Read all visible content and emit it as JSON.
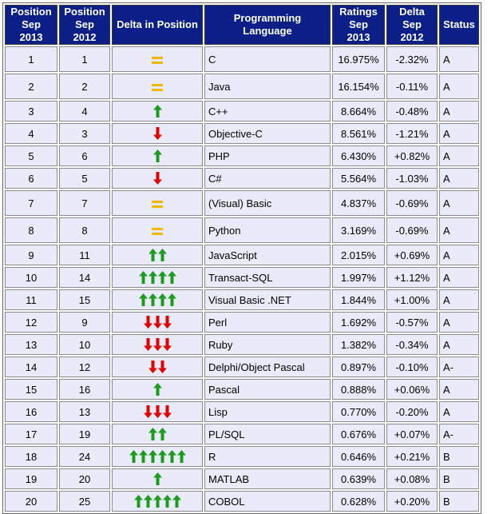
{
  "headers": {
    "pos2013": [
      "Position",
      "Sep 2013"
    ],
    "pos2012": [
      "Position",
      "Sep 2012"
    ],
    "delta_position": "Delta in Position",
    "language": "Programming Language",
    "ratings": [
      "Ratings",
      "Sep 2013"
    ],
    "delta_ratings": [
      "Delta",
      "Sep 2012"
    ],
    "status": "Status"
  },
  "colors": {
    "header_bg": "#0b1f86",
    "cell_bg": "#e9ebfb",
    "arrow_up": "#1e9b1e",
    "arrow_down": "#e00000",
    "equal": "#f0b800",
    "link": "#0c1a8a"
  },
  "rows": [
    {
      "pos2013": "1",
      "pos2012": "1",
      "change": 0,
      "language": "C",
      "ratings": "16.975%",
      "delta": "-2.32%",
      "status": "A"
    },
    {
      "pos2013": "2",
      "pos2012": "2",
      "change": 0,
      "language": "Java",
      "ratings": "16.154%",
      "delta": "-0.11%",
      "status": "A"
    },
    {
      "pos2013": "3",
      "pos2012": "4",
      "change": 1,
      "language": "C++",
      "ratings": "8.664%",
      "delta": "-0.48%",
      "status": "A"
    },
    {
      "pos2013": "4",
      "pos2012": "3",
      "change": -1,
      "language": "Objective-C",
      "ratings": "8.561%",
      "delta": "-1.21%",
      "status": "A"
    },
    {
      "pos2013": "5",
      "pos2012": "6",
      "change": 1,
      "language": "PHP",
      "ratings": "6.430%",
      "delta": "+0.82%",
      "status": "A"
    },
    {
      "pos2013": "6",
      "pos2012": "5",
      "change": -1,
      "language": "C#",
      "ratings": "5.564%",
      "delta": "-1.03%",
      "status": "A"
    },
    {
      "pos2013": "7",
      "pos2012": "7",
      "change": 0,
      "language": "(Visual) Basic",
      "ratings": "4.837%",
      "delta": "-0.69%",
      "status": "A"
    },
    {
      "pos2013": "8",
      "pos2012": "8",
      "change": 0,
      "language": "Python",
      "ratings": "3.169%",
      "delta": "-0.69%",
      "status": "A"
    },
    {
      "pos2013": "9",
      "pos2012": "11",
      "change": 2,
      "language": "JavaScript",
      "ratings": "2.015%",
      "delta": "+0.69%",
      "status": "A"
    },
    {
      "pos2013": "10",
      "pos2012": "14",
      "change": 4,
      "language": "Transact-SQL",
      "ratings": "1.997%",
      "delta": "+1.12%",
      "status": "A"
    },
    {
      "pos2013": "11",
      "pos2012": "15",
      "change": 4,
      "language": "Visual Basic .NET",
      "ratings": "1.844%",
      "delta": "+1.00%",
      "status": "A"
    },
    {
      "pos2013": "12",
      "pos2012": "9",
      "change": -3,
      "language": "Perl",
      "ratings": "1.692%",
      "delta": "-0.57%",
      "status": "A"
    },
    {
      "pos2013": "13",
      "pos2012": "10",
      "change": -3,
      "language": "Ruby",
      "ratings": "1.382%",
      "delta": "-0.34%",
      "status": "A"
    },
    {
      "pos2013": "14",
      "pos2012": "12",
      "change": -2,
      "language": "Delphi/Object Pascal",
      "ratings": "0.897%",
      "delta": "-0.10%",
      "status": "A-"
    },
    {
      "pos2013": "15",
      "pos2012": "16",
      "change": 1,
      "language": "Pascal",
      "ratings": "0.888%",
      "delta": "+0.06%",
      "status": "A"
    },
    {
      "pos2013": "16",
      "pos2012": "13",
      "change": -3,
      "language": "Lisp",
      "ratings": "0.770%",
      "delta": "-0.20%",
      "status": "A"
    },
    {
      "pos2013": "17",
      "pos2012": "19",
      "change": 2,
      "language": "PL/SQL",
      "ratings": "0.676%",
      "delta": "+0.07%",
      "status": "A-"
    },
    {
      "pos2013": "18",
      "pos2012": "24",
      "change": 6,
      "language": "R",
      "ratings": "0.646%",
      "delta": "+0.21%",
      "status": "B"
    },
    {
      "pos2013": "19",
      "pos2012": "20",
      "change": 1,
      "language": "MATLAB",
      "ratings": "0.639%",
      "delta": "+0.08%",
      "status": "B"
    },
    {
      "pos2013": "20",
      "pos2012": "25",
      "change": 5,
      "language": "COBOL",
      "ratings": "0.628%",
      "delta": "+0.20%",
      "status": "B"
    }
  ]
}
